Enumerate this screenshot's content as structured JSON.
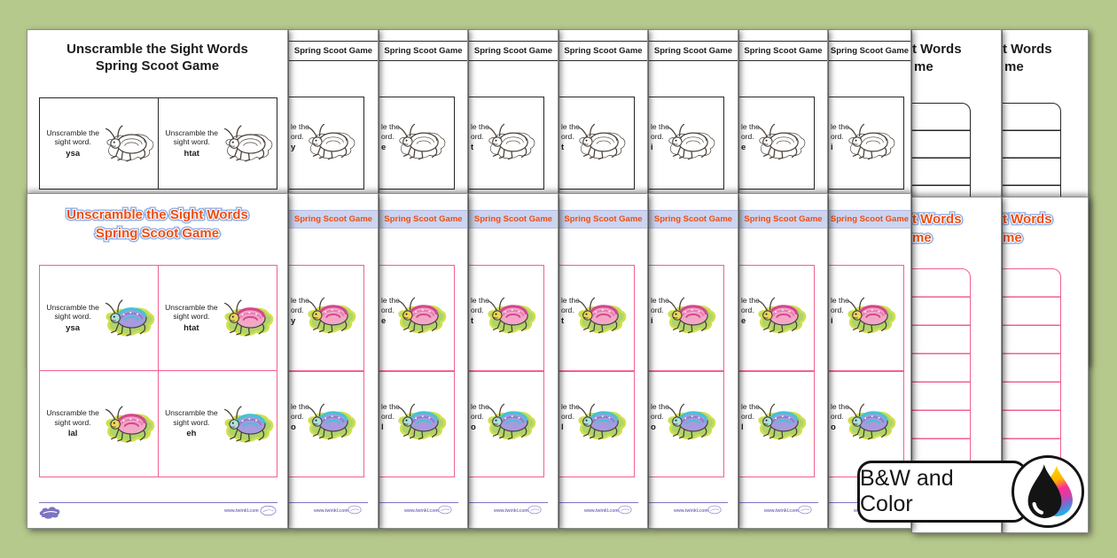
{
  "badge": {
    "label": "B&W and Color"
  },
  "title": {
    "line1": "Unscramble the Sight Words",
    "line2": "Spring Scoot Game"
  },
  "strip_title": "Spring Scoot Game",
  "prompt": {
    "line1": "Unscramble the",
    "line2": "sight word."
  },
  "bw_page": {
    "words": [
      "ysa",
      "htat"
    ]
  },
  "color_page": {
    "cards": [
      {
        "word": "ysa",
        "bug": "blue"
      },
      {
        "word": "htat",
        "bug": "pink"
      },
      {
        "word": "lal",
        "bug": "pink"
      },
      {
        "word": "eh",
        "bug": "blue"
      }
    ]
  },
  "strips": {
    "frag_line1": "le the",
    "frag_line2": "ord.",
    "row1_words": [
      "y",
      "e",
      "t",
      "t",
      "i",
      "e",
      "i"
    ],
    "row2_words": [
      "o",
      "l",
      "o",
      "l",
      "o",
      "l",
      "o"
    ],
    "row1_bug": "pink",
    "row2_bug": "blue"
  },
  "sheets": {
    "frag_line1": "t Words",
    "frag_line2": "me"
  },
  "footer": {
    "site": "www.twinkl.com"
  },
  "colors": {
    "background": "#b6c98c",
    "orange": "#ee4d12",
    "outline_blue": "#8fb0e8",
    "band_bg": "#cdd4ef",
    "pink_border": "#f0618f",
    "purple": "#7d74c4",
    "ink_black": "#141414",
    "grass": "#aed46a",
    "glow": "#cfe04e",
    "bug_blue": {
      "body": "#a79ade",
      "shell": "#45c3d4",
      "stripe": "#8d7fd0",
      "head": "#aee0dc"
    },
    "bug_pink": {
      "body": "#f3a7c6",
      "shell": "#d4478f",
      "stripe": "#e87fb4",
      "head": "#ecd75c"
    }
  }
}
